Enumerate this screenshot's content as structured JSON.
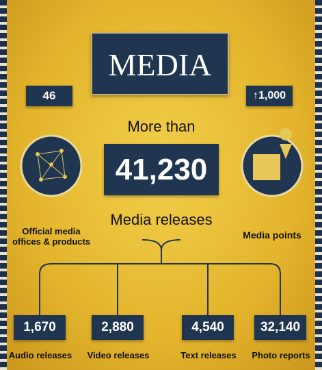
{
  "title": "MEDIA",
  "offices": {
    "value": "46",
    "label": "Official media offices & products"
  },
  "points": {
    "value": "↑1,000",
    "label": "Media points"
  },
  "total": {
    "prefix": "More than",
    "value": "41,230",
    "label": "Media releases"
  },
  "breakdown": [
    {
      "value": "1,670",
      "label": "Audio releases"
    },
    {
      "value": "2,880",
      "label": "Video releases"
    },
    {
      "value": "4,540",
      "label": "Text releases"
    },
    {
      "value": "32,140",
      "label": "Photo reports"
    }
  ]
}
